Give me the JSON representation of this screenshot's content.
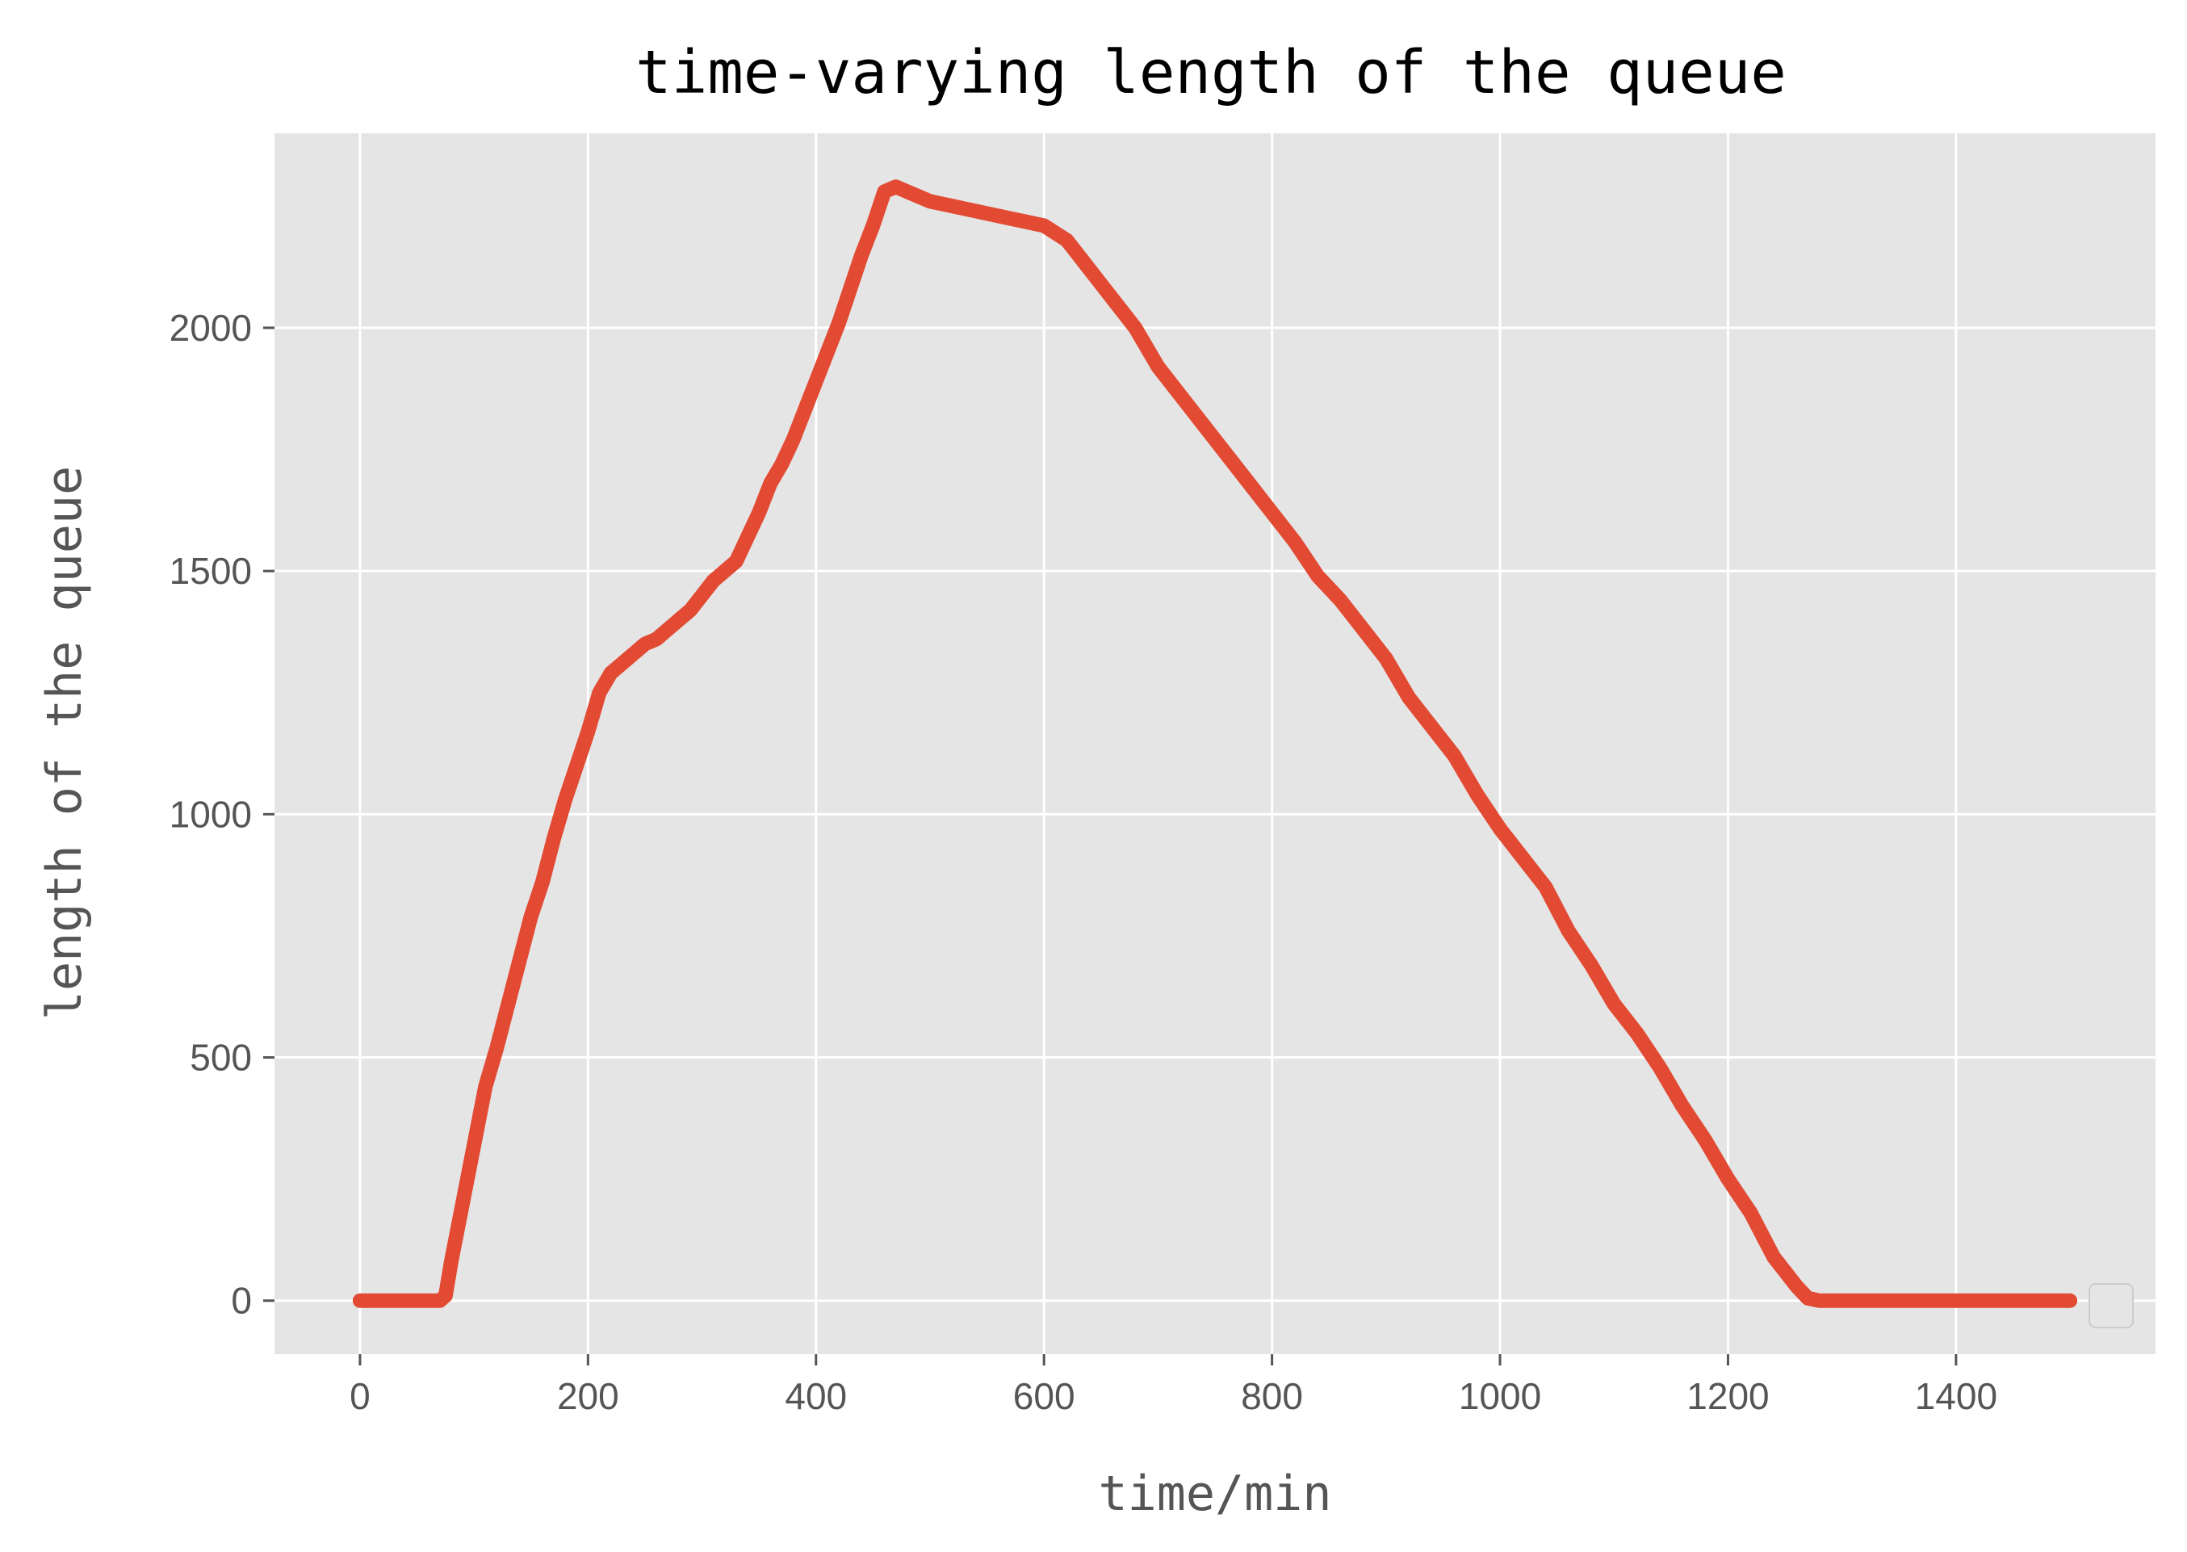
{
  "chart_data": {
    "type": "line",
    "title": "time-varying length of the queue",
    "xlabel": "time/min",
    "ylabel": "length of the queue",
    "xlim": [
      -75,
      1575
    ],
    "ylim": [
      -110,
      2400
    ],
    "x_ticks": [
      0,
      200,
      400,
      600,
      800,
      1000,
      1200,
      1400
    ],
    "y_ticks": [
      0,
      500,
      1000,
      1500,
      2000
    ],
    "x_tick_labels": [
      "0",
      "200",
      "400",
      "600",
      "800",
      "1000",
      "1200",
      "1400"
    ],
    "y_tick_labels": [
      "0",
      "500",
      "1000",
      "1500",
      "2000"
    ],
    "grid": true,
    "legend": "lower-right (empty)",
    "colors": {
      "line": "#E24A33",
      "plot_background": "#E5E5E5",
      "grid": "#FFFFFF",
      "tick_text": "#555555",
      "title": "#000000"
    },
    "series": [
      {
        "x": [
          0,
          20,
          40,
          60,
          70,
          75,
          80,
          90,
          100,
          110,
          120,
          130,
          140,
          150,
          160,
          170,
          180,
          190,
          200,
          210,
          220,
          230,
          240,
          250,
          260,
          270,
          280,
          290,
          300,
          310,
          320,
          330,
          340,
          350,
          360,
          370,
          380,
          390,
          400,
          410,
          420,
          430,
          440,
          450,
          460,
          470,
          480,
          490,
          500,
          520,
          540,
          560,
          580,
          600,
          620,
          630,
          640,
          650,
          660,
          680,
          700,
          720,
          740,
          760,
          780,
          800,
          820,
          840,
          860,
          880,
          900,
          920,
          940,
          960,
          980,
          1000,
          1020,
          1040,
          1060,
          1080,
          1100,
          1120,
          1140,
          1160,
          1180,
          1200,
          1220,
          1240,
          1260,
          1270,
          1280,
          1300,
          1350,
          1400,
          1450,
          1490,
          1500
        ],
        "y": [
          0,
          0,
          0,
          0,
          0,
          10,
          80,
          200,
          320,
          440,
          520,
          610,
          700,
          790,
          860,
          950,
          1030,
          1100,
          1170,
          1250,
          1290,
          1310,
          1330,
          1350,
          1360,
          1380,
          1400,
          1420,
          1450,
          1480,
          1500,
          1520,
          1570,
          1620,
          1680,
          1720,
          1770,
          1830,
          1890,
          1950,
          2010,
          2080,
          2150,
          2210,
          2280,
          2290,
          2280,
          2270,
          2260,
          2250,
          2240,
          2230,
          2220,
          2210,
          2180,
          2150,
          2120,
          2090,
          2060,
          2000,
          1920,
          1860,
          1800,
          1740,
          1680,
          1620,
          1560,
          1490,
          1440,
          1380,
          1320,
          1240,
          1180,
          1120,
          1040,
          970,
          910,
          850,
          760,
          690,
          610,
          550,
          480,
          400,
          330,
          250,
          180,
          90,
          30,
          5,
          0,
          0,
          0,
          0,
          0,
          0,
          0
        ]
      }
    ]
  }
}
